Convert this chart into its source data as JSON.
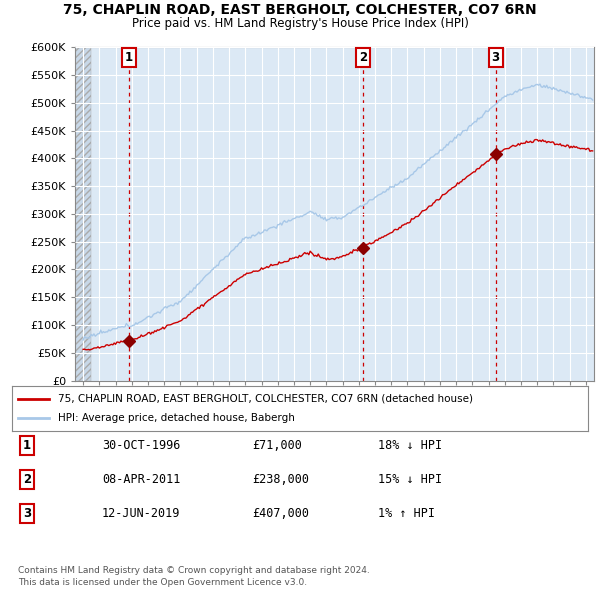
{
  "title": "75, CHAPLIN ROAD, EAST BERGHOLT, COLCHESTER, CO7 6RN",
  "subtitle": "Price paid vs. HM Land Registry's House Price Index (HPI)",
  "hpi_color": "#a8c8e8",
  "price_color": "#cc0000",
  "sale_marker_color": "#8b0000",
  "background_color": "#ffffff",
  "plot_bg_color": "#dce9f5",
  "grid_color": "#ffffff",
  "sales": [
    {
      "year": 1996.83,
      "price": 71000,
      "label": "1"
    },
    {
      "year": 2011.25,
      "price": 238000,
      "label": "2"
    },
    {
      "year": 2019.44,
      "price": 407000,
      "label": "3"
    }
  ],
  "legend_line1": "75, CHAPLIN ROAD, EAST BERGHOLT, COLCHESTER, CO7 6RN (detached house)",
  "legend_line2": "HPI: Average price, detached house, Babergh",
  "table_rows": [
    {
      "num": "1",
      "date": "30-OCT-1996",
      "price": "£71,000",
      "hpi": "18% ↓ HPI"
    },
    {
      "num": "2",
      "date": "08-APR-2011",
      "price": "£238,000",
      "hpi": "15% ↓ HPI"
    },
    {
      "num": "3",
      "date": "12-JUN-2019",
      "price": "£407,000",
      "hpi": "1% ↑ HPI"
    }
  ],
  "footer": "Contains HM Land Registry data © Crown copyright and database right 2024.\nThis data is licensed under the Open Government Licence v3.0.",
  "ylim": [
    0,
    600000
  ],
  "yticks": [
    0,
    50000,
    100000,
    150000,
    200000,
    250000,
    300000,
    350000,
    400000,
    450000,
    500000,
    550000,
    600000
  ],
  "ytick_labels": [
    "£0",
    "£50K",
    "£100K",
    "£150K",
    "£200K",
    "£250K",
    "£300K",
    "£350K",
    "£400K",
    "£450K",
    "£500K",
    "£550K",
    "£600K"
  ],
  "xlim": [
    1993.5,
    2025.5
  ],
  "xticks": [
    1994,
    1995,
    1996,
    1997,
    1998,
    1999,
    2000,
    2001,
    2002,
    2003,
    2004,
    2005,
    2006,
    2007,
    2008,
    2009,
    2010,
    2011,
    2012,
    2013,
    2014,
    2015,
    2016,
    2017,
    2018,
    2019,
    2020,
    2021,
    2022,
    2023,
    2024,
    2025
  ]
}
